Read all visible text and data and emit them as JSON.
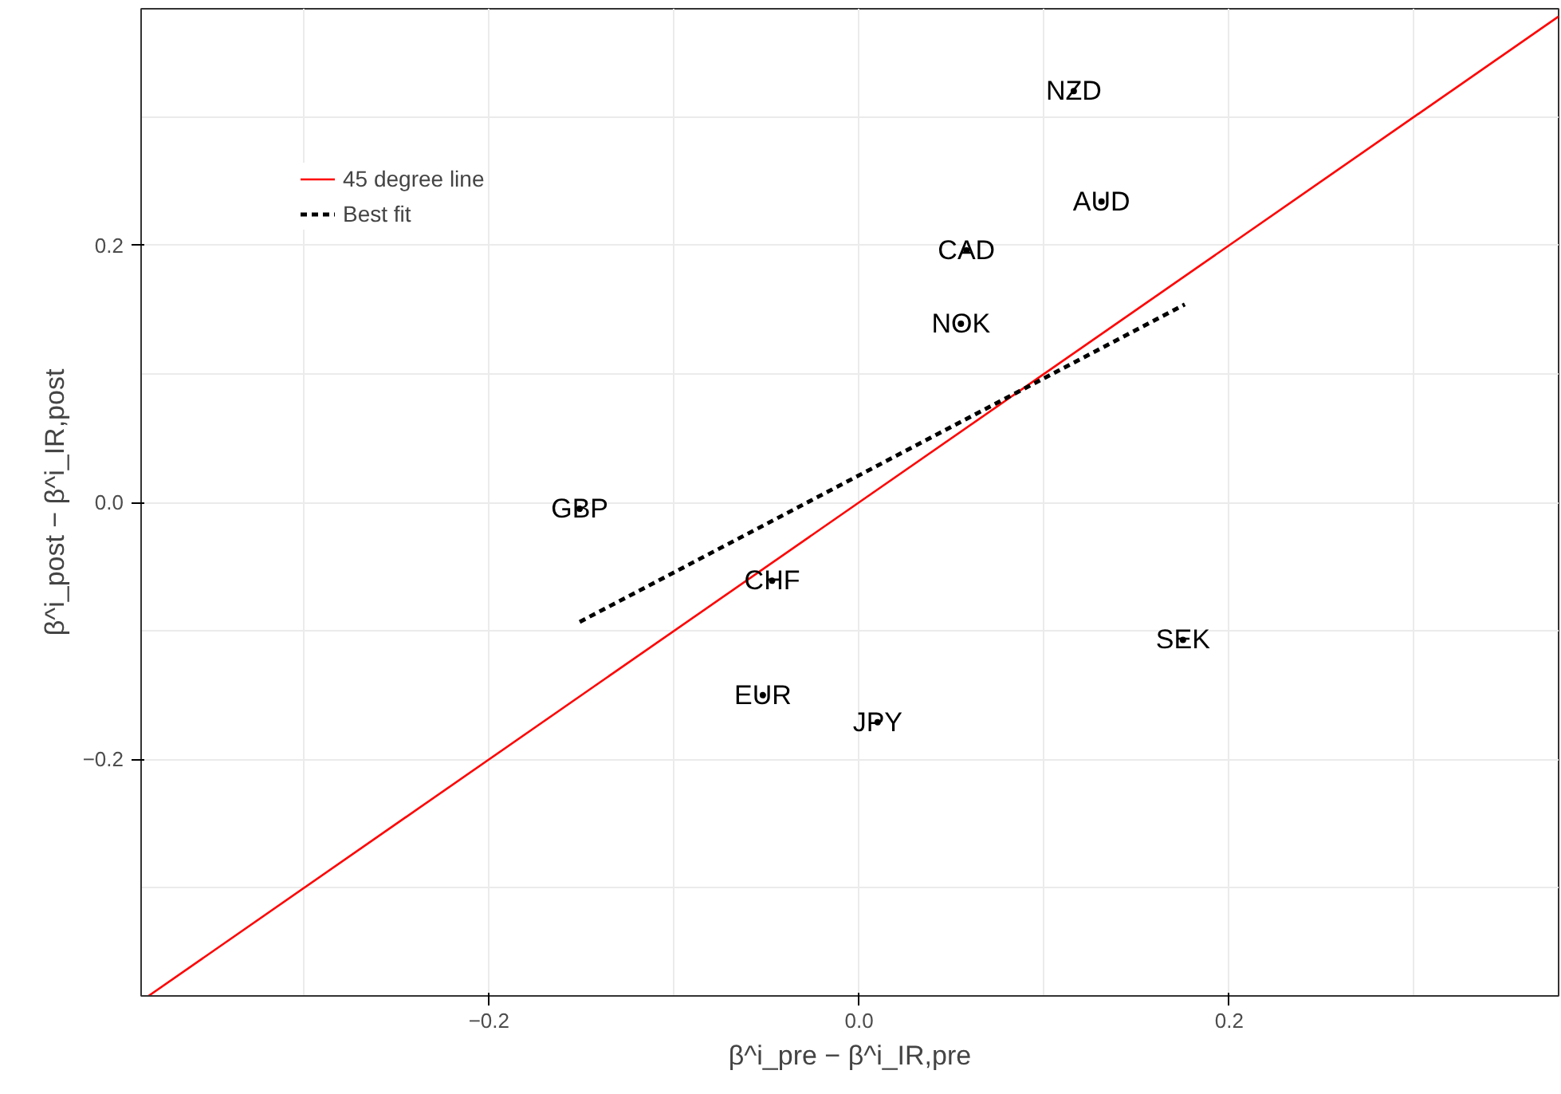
{
  "chart_data": {
    "type": "scatter",
    "xlabel": "β^i_pre − β^i_IR,pre",
    "ylabel": "β^i_post − β^i_IR,post",
    "xlim": [
      -0.388,
      0.378
    ],
    "ylim": [
      -0.384,
      0.384
    ],
    "xticks": [
      {
        "value": -0.3,
        "label": null
      },
      {
        "value": -0.2,
        "label": "−0.2"
      },
      {
        "value": -0.1,
        "label": null
      },
      {
        "value": 0.0,
        "label": "0.0"
      },
      {
        "value": 0.1,
        "label": null
      },
      {
        "value": 0.2,
        "label": "0.2"
      },
      {
        "value": 0.3,
        "label": null
      }
    ],
    "yticks": [
      {
        "value": -0.3,
        "label": null
      },
      {
        "value": -0.2,
        "label": "−0.2"
      },
      {
        "value": -0.1,
        "label": null
      },
      {
        "value": 0.0,
        "label": "0.0"
      },
      {
        "value": 0.1,
        "label": null
      },
      {
        "value": 0.2,
        "label": "0.2"
      },
      {
        "value": 0.3,
        "label": null
      }
    ],
    "grid": true,
    "legend": "top left",
    "series": [
      {
        "marker": "circle",
        "color": "#000000",
        "x": [
          0.116,
          0.131,
          0.058,
          0.055,
          -0.151,
          -0.047,
          0.175,
          -0.052,
          0.01
        ],
        "values": [
          0.32,
          0.234,
          0.196,
          0.139,
          -0.005,
          -0.061,
          -0.107,
          -0.15,
          -0.171
        ]
      },
      {
        "type": "line",
        "name": "45 degree line",
        "color": "#ff0000",
        "line_style": "solid",
        "x": [
          -0.384,
          0.378
        ],
        "values": [
          -0.384,
          0.378
        ]
      },
      {
        "type": "line",
        "name": "Best fit",
        "color": "#000000",
        "line_style": "dashed",
        "x": [
          -0.151,
          0.176
        ],
        "values": [
          -0.093,
          0.154
        ]
      }
    ],
    "annotations": [
      {
        "text": "NZD",
        "x": 0.116,
        "y": 0.32
      },
      {
        "text": "AUD",
        "x": 0.131,
        "y": 0.234
      },
      {
        "text": "CAD",
        "x": 0.058,
        "y": 0.196
      },
      {
        "text": "NOK",
        "x": 0.055,
        "y": 0.139
      },
      {
        "text": "GBP",
        "x": -0.151,
        "y": -0.005
      },
      {
        "text": "CHF",
        "x": -0.047,
        "y": -0.061
      },
      {
        "text": "SEK",
        "x": 0.175,
        "y": -0.107
      },
      {
        "text": "EUR",
        "x": -0.052,
        "y": -0.15
      },
      {
        "text": "JPY",
        "x": 0.01,
        "y": -0.171
      }
    ]
  }
}
